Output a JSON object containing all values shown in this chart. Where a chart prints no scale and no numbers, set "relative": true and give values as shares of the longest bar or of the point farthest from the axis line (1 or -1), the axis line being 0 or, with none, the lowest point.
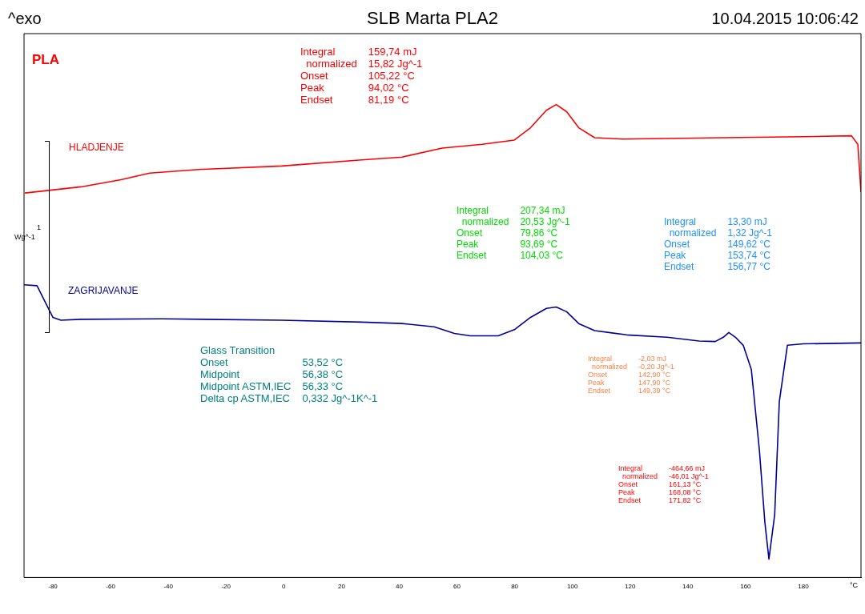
{
  "chart_data": {
    "type": "line",
    "title": "SLB Marta PLA2",
    "xlabel": "°C",
    "relative": true,
    "xlim": [
      -90,
      200
    ],
    "xticks": [
      -80,
      -60,
      -40,
      -20,
      0,
      20,
      40,
      60,
      80,
      100,
      120,
      140,
      160,
      180
    ],
    "grid": false,
    "legend": false,
    "marker": "none",
    "line_style": "solid",
    "annotations": [
      "^exo",
      "10.04.2015 10:06:42",
      "PLA",
      "Integral\t159,74 mJ\n  normalized\t15,82 Jg^-1\nOnset\t105,22 °C\nPeak\t94,02 °C\nEndset\t81,19 °C",
      "Integral\t207,34 mJ\n  normalized\t20,53 Jg^-1\nOnset\t79,86 °C\nPeak\t93,69 °C\nEndset\t104,03 °C",
      "Integral\t13,30 mJ\n  normalized\t1,32 Jg^-1\nOnset\t149,62 °C\nPeak\t153,74 °C\nEndset\t156,77 °C",
      "Glass Transition\t\nOnset\t53,52 °C\nMidpoint\t56,38 °C\nMidpoint ASTM,IEC\t56,33 °C\nDelta cp ASTM,IEC\t0,332 Jg^-1K^-1",
      "Integral\t-2,03 mJ\n  normalized\t-0,20 Jg^-1\nOnset\t142,90 °C\nPeak\t147,90 °C\nEndset\t149,39 °C",
      "Integral\t-464,66 mJ\n  normalized\t-46,01 Jg^-1\nOnset\t161,13 °C\nPeak\t168,08 °C\nEndset\t171,82 °C",
      "1",
      "Wg^-1"
    ],
    "series": [
      {
        "name": "HLADJENJE",
        "color": "#ff0000",
        "x": [
          -89.7,
          -70.3,
          -56.4,
          -46.5,
          -28.6,
          -0.8,
          27.0,
          41.0,
          54.9,
          68.8,
          79.9,
          85.5,
          91.0,
          94.4,
          98.0,
          102.2,
          107.7,
          117.5,
          152.3,
          180.0,
          196.7,
          198.9,
          200
        ],
        "values": [
          0.813,
          0.826,
          0.841,
          0.855,
          0.863,
          0.87,
          0.883,
          0.889,
          0.908,
          0.916,
          0.925,
          0.951,
          0.988,
          1,
          0.985,
          0.951,
          0.93,
          0.927,
          0.93,
          0.932,
          0.934,
          0.916,
          0.815
        ]
      },
      {
        "name": "ZAGRIJAVANJE",
        "color": "#000099",
        "x": [
          -90,
          -85.5,
          -82.8,
          -80.0,
          -77.2,
          -70.3,
          -42.4,
          -0.8,
          27.0,
          41.0,
          52.1,
          59.1,
          64.6,
          74.3,
          79.9,
          85.5,
          91.0,
          94.4,
          98.0,
          102.2,
          107.7,
          118.8,
          132.8,
          143.9,
          149.5,
          152.3,
          154.2,
          156.5,
          159.2,
          162.0,
          164.8,
          166.7,
          168.1,
          170.1,
          171.7,
          174.5,
          180.0,
          200
        ],
        "values": [
          0.619,
          0.617,
          0.584,
          0.55,
          0.544,
          0.546,
          0.547,
          0.544,
          0.54,
          0.537,
          0.53,
          0.516,
          0.511,
          0.511,
          0.524,
          0.55,
          0.569,
          0.572,
          0.562,
          0.537,
          0.522,
          0.513,
          0.508,
          0.5,
          0.499,
          0.508,
          0.518,
          0.508,
          0.491,
          0.44,
          0.269,
          0.116,
          0.039,
          0.133,
          0.372,
          0.491,
          0.494,
          0.496
        ]
      }
    ]
  }
}
